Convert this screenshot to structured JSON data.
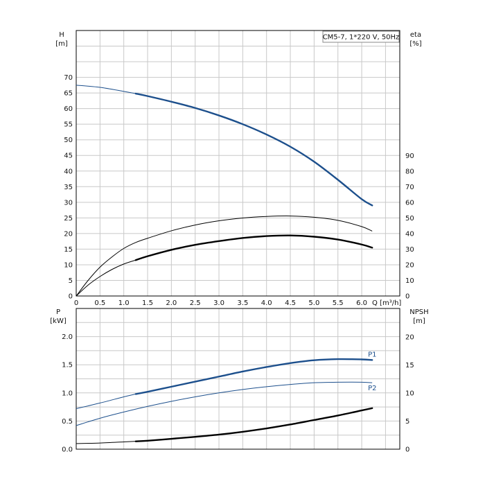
{
  "chart_data": [
    {
      "type": "line",
      "model_label": "CM5-7, 1*220 V, 50Hz",
      "xlabel": "Q [m³/h]",
      "ylabel": "H",
      "ylabel_unit": "[m]",
      "y2label": "eta",
      "y2label_unit": "[%]",
      "xlim": [
        0,
        6.8
      ],
      "ylim": [
        0,
        85
      ],
      "x_ticks": [
        "0",
        "0.5",
        "1.0",
        "1.5",
        "2.0",
        "2.5",
        "3.0",
        "3.5",
        "4.0",
        "4.5",
        "5.0",
        "5.5",
        "6.0"
      ],
      "y_ticks": [
        "0",
        "5",
        "10",
        "15",
        "20",
        "25",
        "30",
        "35",
        "40",
        "45",
        "50",
        "55",
        "60",
        "65",
        "70"
      ],
      "y2_ticks": [
        "0",
        "10",
        "20",
        "30",
        "40",
        "50",
        "60",
        "70",
        "80",
        "90"
      ],
      "grid": true,
      "series": [
        {
          "id": "head",
          "axis": "left",
          "color": "#1c4f8c",
          "thin": [
            [
              0,
              67.5
            ],
            [
              0.5,
              66.8
            ],
            [
              1.0,
              65.5
            ],
            [
              1.25,
              64.8
            ]
          ],
          "bold": [
            [
              1.25,
              64.8
            ],
            [
              1.5,
              64.0
            ],
            [
              2.0,
              62.2
            ],
            [
              2.5,
              60.2
            ],
            [
              3.0,
              57.8
            ],
            [
              3.5,
              55.0
            ],
            [
              4.0,
              51.7
            ],
            [
              4.5,
              47.8
            ],
            [
              5.0,
              43.0
            ],
            [
              5.5,
              37.2
            ],
            [
              6.0,
              31.0
            ],
            [
              6.22,
              29.0
            ]
          ]
        },
        {
          "id": "eta_pump",
          "axis": "right",
          "color": "#000000",
          "thin": [
            [
              0,
              0
            ],
            [
              0.25,
              10.0
            ],
            [
              0.5,
              18.5
            ],
            [
              0.75,
              25.0
            ],
            [
              1.0,
              30.5
            ],
            [
              1.25,
              34.3
            ],
            [
              1.5,
              37.0
            ],
            [
              2.0,
              41.8
            ],
            [
              2.5,
              45.5
            ],
            [
              3.0,
              48.2
            ],
            [
              3.5,
              50.0
            ],
            [
              4.0,
              51.0
            ],
            [
              4.5,
              51.3
            ],
            [
              5.0,
              50.5
            ],
            [
              5.5,
              48.5
            ],
            [
              6.0,
              44.5
            ],
            [
              6.22,
              41.6
            ]
          ],
          "bold": []
        },
        {
          "id": "eta_total",
          "axis": "right",
          "color": "#000000",
          "thin": [
            [
              0,
              0
            ],
            [
              0.25,
              7.0
            ],
            [
              0.5,
              12.5
            ],
            [
              0.75,
              17.0
            ],
            [
              1.0,
              20.5
            ],
            [
              1.25,
              23.0
            ]
          ],
          "bold": [
            [
              1.25,
              23.0
            ],
            [
              1.5,
              25.5
            ],
            [
              2.0,
              29.6
            ],
            [
              2.5,
              32.8
            ],
            [
              3.0,
              35.2
            ],
            [
              3.5,
              37.2
            ],
            [
              4.0,
              38.4
            ],
            [
              4.5,
              38.8
            ],
            [
              5.0,
              38.0
            ],
            [
              5.5,
              36.2
            ],
            [
              6.0,
              33.0
            ],
            [
              6.22,
              31.0
            ]
          ]
        }
      ]
    },
    {
      "type": "line",
      "xlabel": "Q [m³/h]",
      "ylabel": "P",
      "ylabel_unit": "[kW]",
      "y2label": "NPSH",
      "y2label_unit": "[m]",
      "xlim": [
        0,
        6.8
      ],
      "ylim": [
        0,
        2.5
      ],
      "y_ticks": [
        "0.0",
        "0.5",
        "1.0",
        "1.5",
        "2.0"
      ],
      "y2_ticks": [
        "0",
        "5",
        "10",
        "15",
        "20"
      ],
      "grid": true,
      "series": [
        {
          "id": "p1",
          "name": "P1",
          "axis": "left",
          "color": "#1c4f8c",
          "thin": [
            [
              0,
              0.72
            ],
            [
              0.5,
              0.82
            ],
            [
              1.0,
              0.93
            ],
            [
              1.25,
              0.98
            ]
          ],
          "bold": [
            [
              1.25,
              0.98
            ],
            [
              1.5,
              1.02
            ],
            [
              2.0,
              1.11
            ],
            [
              2.5,
              1.2
            ],
            [
              3.0,
              1.29
            ],
            [
              3.5,
              1.38
            ],
            [
              4.0,
              1.46
            ],
            [
              4.5,
              1.53
            ],
            [
              5.0,
              1.58
            ],
            [
              5.5,
              1.6
            ],
            [
              6.0,
              1.595
            ],
            [
              6.22,
              1.585
            ]
          ]
        },
        {
          "id": "p2",
          "name": "P2",
          "axis": "left",
          "color": "#1c4f8c",
          "thin": [
            [
              0,
              0.42
            ],
            [
              0.5,
              0.55
            ],
            [
              1.0,
              0.66
            ],
            [
              1.5,
              0.76
            ],
            [
              2.0,
              0.85
            ],
            [
              2.5,
              0.93
            ],
            [
              3.0,
              1.0
            ],
            [
              3.5,
              1.06
            ],
            [
              4.0,
              1.11
            ],
            [
              4.5,
              1.15
            ],
            [
              5.0,
              1.18
            ],
            [
              5.5,
              1.19
            ],
            [
              6.0,
              1.19
            ],
            [
              6.22,
              1.18
            ]
          ],
          "bold": []
        },
        {
          "id": "npsh",
          "axis": "right",
          "color": "#000000",
          "thin": [
            [
              0,
              1.0
            ],
            [
              0.5,
              1.1
            ],
            [
              1.0,
              1.3
            ],
            [
              1.25,
              1.4
            ]
          ],
          "bold": [
            [
              1.25,
              1.4
            ],
            [
              1.5,
              1.5
            ],
            [
              2.0,
              1.85
            ],
            [
              2.5,
              2.2
            ],
            [
              3.0,
              2.6
            ],
            [
              3.5,
              3.1
            ],
            [
              4.0,
              3.7
            ],
            [
              4.5,
              4.4
            ],
            [
              5.0,
              5.2
            ],
            [
              5.5,
              6.0
            ],
            [
              6.0,
              6.9
            ],
            [
              6.22,
              7.3
            ]
          ]
        }
      ]
    }
  ]
}
